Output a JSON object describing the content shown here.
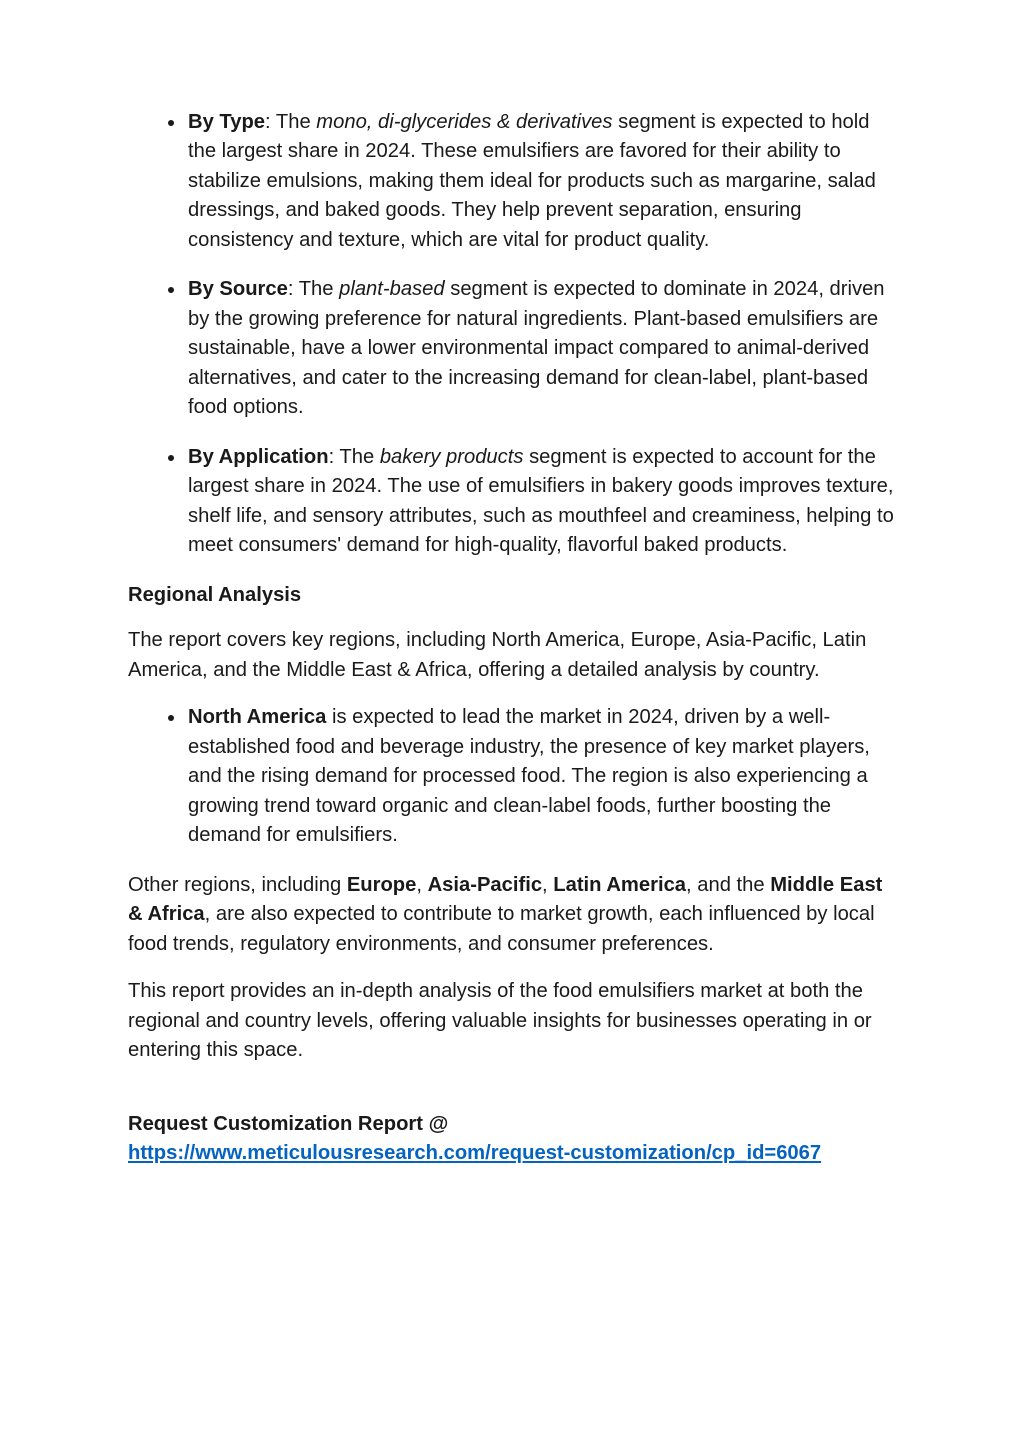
{
  "segments": [
    {
      "label": "By Type",
      "emph": "mono, di-glycerides & derivatives",
      "pre": ": The ",
      "post": " segment is expected to hold the largest share in 2024. These emulsifiers are favored for their ability to stabilize emulsions, making them ideal for products such as margarine, salad dressings, and baked goods. They help prevent separation, ensuring consistency and texture, which are vital for product quality."
    },
    {
      "label": "By Source",
      "emph": "plant-based",
      "pre": ": The ",
      "post": " segment is expected to dominate in 2024, driven by the growing preference for natural ingredients. Plant-based emulsifiers are sustainable, have a lower environmental impact compared to animal-derived alternatives, and cater to the increasing demand for clean-label, plant-based food options."
    },
    {
      "label": "By Application",
      "emph": "bakery products",
      "pre": ": The ",
      "post": " segment is expected to account for the largest share in 2024. The use of emulsifiers in bakery goods improves texture, shelf life, and sensory attributes, such as mouthfeel and creaminess, helping to meet consumers' demand for high-quality, flavorful baked products."
    }
  ],
  "regional_heading": "Regional Analysis",
  "regional_intro": "The report covers key regions, including North America, Europe, Asia-Pacific, Latin America, and the Middle East & Africa, offering a detailed analysis by country.",
  "region_bullet": {
    "label": "North America",
    "rest": " is expected to lead the market in 2024, driven by a well-established food and beverage industry, the presence of key market players, and the rising demand for processed food. The region is also experiencing a growing trend toward organic and clean-label foods, further boosting the demand for emulsifiers."
  },
  "other_regions": {
    "t1": "Other regions, including ",
    "r1": "Europe",
    "s1": ", ",
    "r2": "Asia-Pacific",
    "s2": ", ",
    "r3": "Latin America",
    "s3": ", and the ",
    "r4": "Middle East & Africa",
    "t2": ", are also expected to contribute to market growth, each influenced by local food trends, regulatory environments, and consumer preferences."
  },
  "closing": "This report provides an in-depth analysis of the food emulsifiers market at both the regional and country levels, offering valuable insights for businesses operating in or entering this space.",
  "cta": {
    "label": "Request Customization Report @",
    "url": "https://www.meticulousresearch.com/request-customization/cp_id=6067"
  }
}
